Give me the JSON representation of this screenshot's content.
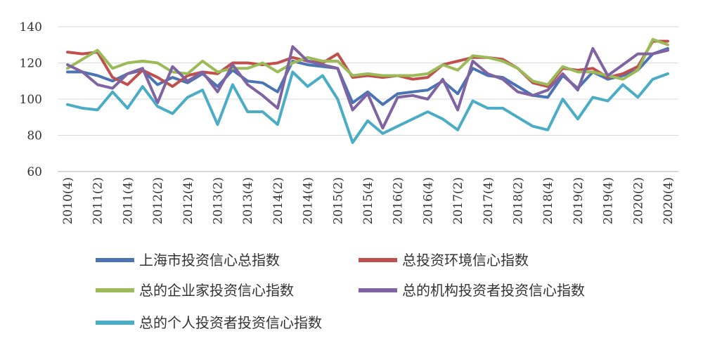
{
  "chart_data": {
    "type": "line",
    "title": "",
    "xlabel": "",
    "ylabel": "",
    "ylim": [
      60,
      140
    ],
    "yticks": [
      60,
      80,
      100,
      120,
      140
    ],
    "grid": "horizontal",
    "legend_position": "bottom",
    "x": [
      "2010(4)",
      "2011(1)",
      "2011(2)",
      "2011(3)",
      "2011(4)",
      "2012(1)",
      "2012(2)",
      "2012(3)",
      "2012(4)",
      "2013(1)",
      "2013(2)",
      "2013(3)",
      "2013(4)",
      "2014(1)",
      "2014(2)",
      "2014(3)",
      "2014(4)",
      "2015(1)",
      "2015(2)",
      "2015(3)",
      "2015(4)",
      "2016(1)",
      "2016(2)",
      "2016(3)",
      "2016(4)",
      "2017(1)",
      "2017(2)",
      "2017(3)",
      "2017(4)",
      "2018(1)",
      "2018(2)",
      "2018(3)",
      "2018(4)",
      "2019(1)",
      "2019(2)",
      "2019(3)",
      "2019(4)",
      "2020(1)",
      "2020(2)",
      "2020(3)",
      "2020(4)"
    ],
    "x_tick_labels": [
      "2010(4)",
      "2011(2)",
      "2011(4)",
      "2012(2)",
      "2012(4)",
      "2013(2)",
      "2013(4)",
      "2014(2)",
      "2014(4)",
      "2015(2)",
      "2015(4)",
      "2016(2)",
      "2016(4)",
      "2017(2)",
      "2017(4)",
      "2018(2)",
      "2018(4)",
      "2019(2)",
      "2019(4)",
      "2020(2)",
      "2020(4)"
    ],
    "series": [
      {
        "name": "上海市投资信心总指数",
        "color": "#4a74b4",
        "values": [
          115,
          115,
          113,
          110,
          114,
          116,
          108,
          112,
          109,
          114,
          107,
          116,
          110,
          109,
          104,
          121,
          119,
          118,
          117,
          98,
          104,
          97,
          103,
          104,
          105,
          110,
          103,
          117,
          113,
          112,
          107,
          102,
          101,
          113,
          106,
          115,
          111,
          113,
          116,
          125,
          128
        ]
      },
      {
        "name": "总投资环境信心指数",
        "color": "#c0504d",
        "values": [
          126,
          125,
          126,
          112,
          108,
          116,
          112,
          107,
          113,
          115,
          114,
          120,
          120,
          119,
          120,
          123,
          121,
          120,
          125,
          112,
          113,
          112,
          113,
          111,
          112,
          119,
          121,
          123,
          123,
          122,
          117,
          109,
          107,
          117,
          116,
          117,
          112,
          114,
          118,
          132,
          132
        ]
      },
      {
        "name": "总的企业家投资信心指数",
        "color": "#9bbb59",
        "values": [
          117,
          122,
          127,
          117,
          120,
          121,
          120,
          115,
          114,
          121,
          115,
          117,
          117,
          120,
          115,
          120,
          123,
          121,
          121,
          113,
          114,
          113,
          113,
          113,
          114,
          119,
          116,
          124,
          123,
          121,
          117,
          110,
          108,
          118,
          115,
          115,
          113,
          111,
          116,
          133,
          130
        ]
      },
      {
        "name": "总的机构投资者投资信心指数",
        "color": "#8064a2",
        "values": [
          119,
          115,
          108,
          106,
          114,
          117,
          98,
          118,
          110,
          115,
          104,
          119,
          108,
          102,
          95,
          129,
          121,
          119,
          117,
          94,
          103,
          84,
          101,
          102,
          100,
          111,
          94,
          121,
          114,
          111,
          104,
          102,
          105,
          114,
          105,
          128,
          113,
          119,
          125,
          125,
          127
        ]
      },
      {
        "name": "总的个人投资者投资信心指数",
        "color": "#4bacc6",
        "values": [
          97,
          95,
          94,
          104,
          95,
          107,
          96,
          92,
          101,
          105,
          86,
          108,
          93,
          93,
          86,
          115,
          107,
          113,
          100,
          76,
          88,
          81,
          85,
          89,
          93,
          89,
          83,
          99,
          95,
          95,
          90,
          85,
          83,
          100,
          89,
          101,
          99,
          108,
          101,
          111,
          114
        ]
      }
    ]
  }
}
